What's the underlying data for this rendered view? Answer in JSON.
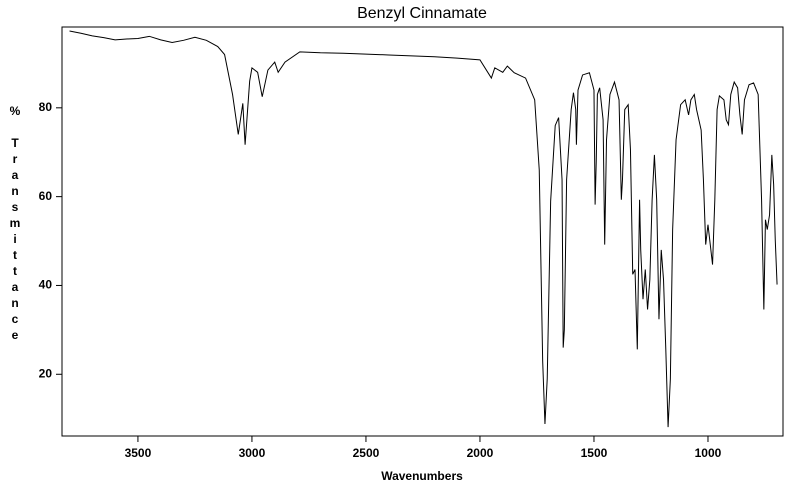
{
  "chart_data": {
    "type": "line",
    "title": "Benzyl Cinnamate",
    "x_label": "Wavenumbers",
    "y_label": "% Transmittance",
    "xlim": [
      3833,
      671
    ],
    "ylim": [
      6.1,
      98.2
    ],
    "xticks": [
      3500,
      3000,
      2500,
      2000,
      1500,
      1000
    ],
    "yticks": [
      20,
      40,
      60,
      80
    ],
    "series": [
      {
        "name": "Benzyl Cinnamate",
        "color": "#000000",
        "x": [
          3800,
          3750,
          3700,
          3650,
          3600,
          3550,
          3500,
          3450,
          3400,
          3350,
          3300,
          3250,
          3200,
          3150,
          3120,
          3085,
          3060,
          3040,
          3030,
          3010,
          3000,
          2975,
          2955,
          2930,
          2900,
          2885,
          2855,
          2790,
          2700,
          2600,
          2500,
          2400,
          2300,
          2200,
          2100,
          2000,
          1950,
          1935,
          1900,
          1880,
          1850,
          1800,
          1760,
          1740,
          1725,
          1715,
          1705,
          1690,
          1670,
          1655,
          1640,
          1635,
          1630,
          1620,
          1600,
          1590,
          1580,
          1577,
          1570,
          1550,
          1520,
          1500,
          1495,
          1490,
          1485,
          1475,
          1460,
          1453,
          1445,
          1430,
          1410,
          1390,
          1380,
          1375,
          1365,
          1350,
          1340,
          1330,
          1320,
          1310,
          1300,
          1295,
          1285,
          1275,
          1265,
          1255,
          1245,
          1235,
          1225,
          1215,
          1205,
          1195,
          1185,
          1175,
          1165,
          1155,
          1140,
          1120,
          1100,
          1085,
          1075,
          1060,
          1050,
          1030,
          1020,
          1010,
          1000,
          990,
          980,
          970,
          960,
          950,
          930,
          920,
          910,
          900,
          885,
          870,
          860,
          850,
          840,
          820,
          800,
          780,
          765,
          755,
          748,
          740,
          730,
          720,
          712,
          705,
          697
        ],
        "values": [
          97.3,
          96.8,
          96.2,
          95.8,
          95.3,
          95.5,
          95.6,
          96.1,
          95.3,
          94.7,
          95.2,
          95.9,
          95.2,
          93.8,
          92,
          83,
          74,
          81,
          71.7,
          86,
          89,
          88,
          82.5,
          88.5,
          90.3,
          88,
          90.3,
          92.6,
          92.4,
          92.3,
          92.1,
          91.9,
          91.7,
          91.5,
          91.2,
          90.8,
          86.7,
          89,
          88,
          89.4,
          87.9,
          86.7,
          81.8,
          66,
          23,
          8.8,
          19,
          59,
          76,
          77.8,
          63.8,
          26,
          30,
          63.8,
          79.6,
          83.4,
          79.6,
          71.7,
          84,
          87.4,
          87.9,
          84,
          58.2,
          68,
          83,
          84.5,
          77.3,
          49.2,
          72.8,
          83,
          85.8,
          81.8,
          59.3,
          63.8,
          79.6,
          80.7,
          70.6,
          42.5,
          43.6,
          25.6,
          59.3,
          48,
          36.9,
          43.6,
          34.6,
          41.3,
          59.3,
          69.4,
          59.3,
          32.4,
          48,
          41.3,
          25.6,
          8.1,
          18.9,
          52.6,
          72.8,
          80.7,
          81.8,
          78.4,
          81.8,
          83,
          79.6,
          75,
          63.8,
          49.2,
          53.7,
          49.2,
          44.7,
          59.3,
          79.6,
          82.7,
          81.8,
          77.3,
          76.2,
          83,
          85.8,
          84.5,
          78.4,
          74,
          81.8,
          85.2,
          85.6,
          83,
          59.3,
          34.6,
          54.8,
          52.6,
          55.9,
          69.4,
          62.7,
          50.3,
          40.2
        ]
      }
    ]
  }
}
